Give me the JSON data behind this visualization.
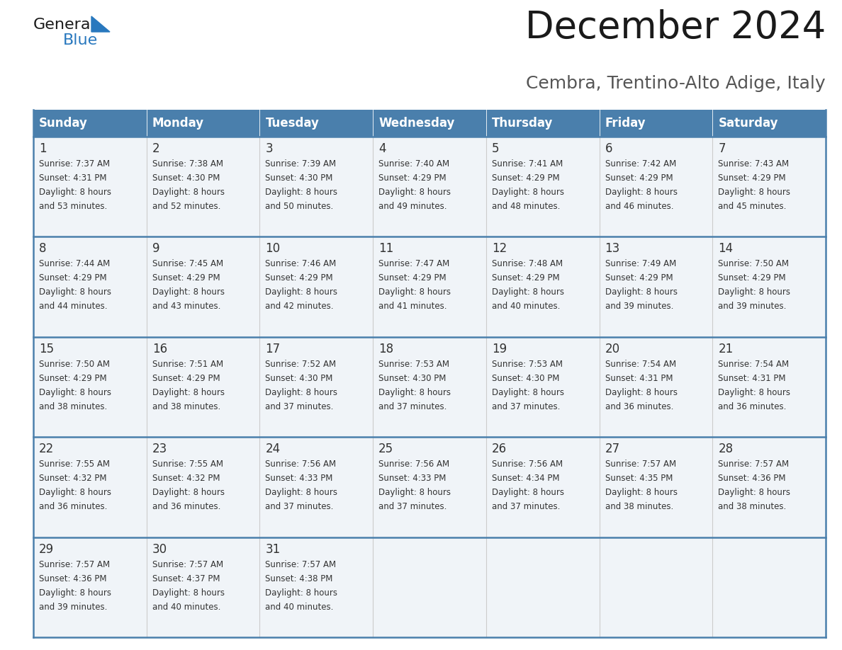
{
  "title": "December 2024",
  "subtitle": "Cembra, Trentino-Alto Adige, Italy",
  "header_color": "#4a7fac",
  "header_text_color": "#ffffff",
  "cell_bg": "#f0f4f8",
  "empty_cell_bg": "#f0f4f8",
  "border_color": "#4a7fac",
  "separator_color": "#4a7fac",
  "day_names": [
    "Sunday",
    "Monday",
    "Tuesday",
    "Wednesday",
    "Thursday",
    "Friday",
    "Saturday"
  ],
  "weeks": [
    [
      {
        "day": 1,
        "sunrise": "7:37 AM",
        "sunset": "4:31 PM",
        "daylight_hours": 8,
        "daylight_minutes": 53
      },
      {
        "day": 2,
        "sunrise": "7:38 AM",
        "sunset": "4:30 PM",
        "daylight_hours": 8,
        "daylight_minutes": 52
      },
      {
        "day": 3,
        "sunrise": "7:39 AM",
        "sunset": "4:30 PM",
        "daylight_hours": 8,
        "daylight_minutes": 50
      },
      {
        "day": 4,
        "sunrise": "7:40 AM",
        "sunset": "4:29 PM",
        "daylight_hours": 8,
        "daylight_minutes": 49
      },
      {
        "day": 5,
        "sunrise": "7:41 AM",
        "sunset": "4:29 PM",
        "daylight_hours": 8,
        "daylight_minutes": 48
      },
      {
        "day": 6,
        "sunrise": "7:42 AM",
        "sunset": "4:29 PM",
        "daylight_hours": 8,
        "daylight_minutes": 46
      },
      {
        "day": 7,
        "sunrise": "7:43 AM",
        "sunset": "4:29 PM",
        "daylight_hours": 8,
        "daylight_minutes": 45
      }
    ],
    [
      {
        "day": 8,
        "sunrise": "7:44 AM",
        "sunset": "4:29 PM",
        "daylight_hours": 8,
        "daylight_minutes": 44
      },
      {
        "day": 9,
        "sunrise": "7:45 AM",
        "sunset": "4:29 PM",
        "daylight_hours": 8,
        "daylight_minutes": 43
      },
      {
        "day": 10,
        "sunrise": "7:46 AM",
        "sunset": "4:29 PM",
        "daylight_hours": 8,
        "daylight_minutes": 42
      },
      {
        "day": 11,
        "sunrise": "7:47 AM",
        "sunset": "4:29 PM",
        "daylight_hours": 8,
        "daylight_minutes": 41
      },
      {
        "day": 12,
        "sunrise": "7:48 AM",
        "sunset": "4:29 PM",
        "daylight_hours": 8,
        "daylight_minutes": 40
      },
      {
        "day": 13,
        "sunrise": "7:49 AM",
        "sunset": "4:29 PM",
        "daylight_hours": 8,
        "daylight_minutes": 39
      },
      {
        "day": 14,
        "sunrise": "7:50 AM",
        "sunset": "4:29 PM",
        "daylight_hours": 8,
        "daylight_minutes": 39
      }
    ],
    [
      {
        "day": 15,
        "sunrise": "7:50 AM",
        "sunset": "4:29 PM",
        "daylight_hours": 8,
        "daylight_minutes": 38
      },
      {
        "day": 16,
        "sunrise": "7:51 AM",
        "sunset": "4:29 PM",
        "daylight_hours": 8,
        "daylight_minutes": 38
      },
      {
        "day": 17,
        "sunrise": "7:52 AM",
        "sunset": "4:30 PM",
        "daylight_hours": 8,
        "daylight_minutes": 37
      },
      {
        "day": 18,
        "sunrise": "7:53 AM",
        "sunset": "4:30 PM",
        "daylight_hours": 8,
        "daylight_minutes": 37
      },
      {
        "day": 19,
        "sunrise": "7:53 AM",
        "sunset": "4:30 PM",
        "daylight_hours": 8,
        "daylight_minutes": 37
      },
      {
        "day": 20,
        "sunrise": "7:54 AM",
        "sunset": "4:31 PM",
        "daylight_hours": 8,
        "daylight_minutes": 36
      },
      {
        "day": 21,
        "sunrise": "7:54 AM",
        "sunset": "4:31 PM",
        "daylight_hours": 8,
        "daylight_minutes": 36
      }
    ],
    [
      {
        "day": 22,
        "sunrise": "7:55 AM",
        "sunset": "4:32 PM",
        "daylight_hours": 8,
        "daylight_minutes": 36
      },
      {
        "day": 23,
        "sunrise": "7:55 AM",
        "sunset": "4:32 PM",
        "daylight_hours": 8,
        "daylight_minutes": 36
      },
      {
        "day": 24,
        "sunrise": "7:56 AM",
        "sunset": "4:33 PM",
        "daylight_hours": 8,
        "daylight_minutes": 37
      },
      {
        "day": 25,
        "sunrise": "7:56 AM",
        "sunset": "4:33 PM",
        "daylight_hours": 8,
        "daylight_minutes": 37
      },
      {
        "day": 26,
        "sunrise": "7:56 AM",
        "sunset": "4:34 PM",
        "daylight_hours": 8,
        "daylight_minutes": 37
      },
      {
        "day": 27,
        "sunrise": "7:57 AM",
        "sunset": "4:35 PM",
        "daylight_hours": 8,
        "daylight_minutes": 38
      },
      {
        "day": 28,
        "sunrise": "7:57 AM",
        "sunset": "4:36 PM",
        "daylight_hours": 8,
        "daylight_minutes": 38
      }
    ],
    [
      {
        "day": 29,
        "sunrise": "7:57 AM",
        "sunset": "4:36 PM",
        "daylight_hours": 8,
        "daylight_minutes": 39
      },
      {
        "day": 30,
        "sunrise": "7:57 AM",
        "sunset": "4:37 PM",
        "daylight_hours": 8,
        "daylight_minutes": 40
      },
      {
        "day": 31,
        "sunrise": "7:57 AM",
        "sunset": "4:38 PM",
        "daylight_hours": 8,
        "daylight_minutes": 40
      },
      null,
      null,
      null,
      null
    ]
  ],
  "logo_general_color": "#1a1a1a",
  "logo_blue_color": "#2878be",
  "logo_triangle_color": "#2878be",
  "title_fontsize": 38,
  "subtitle_fontsize": 18,
  "header_fontsize": 12,
  "day_number_fontsize": 12,
  "cell_text_fontsize": 8.5
}
